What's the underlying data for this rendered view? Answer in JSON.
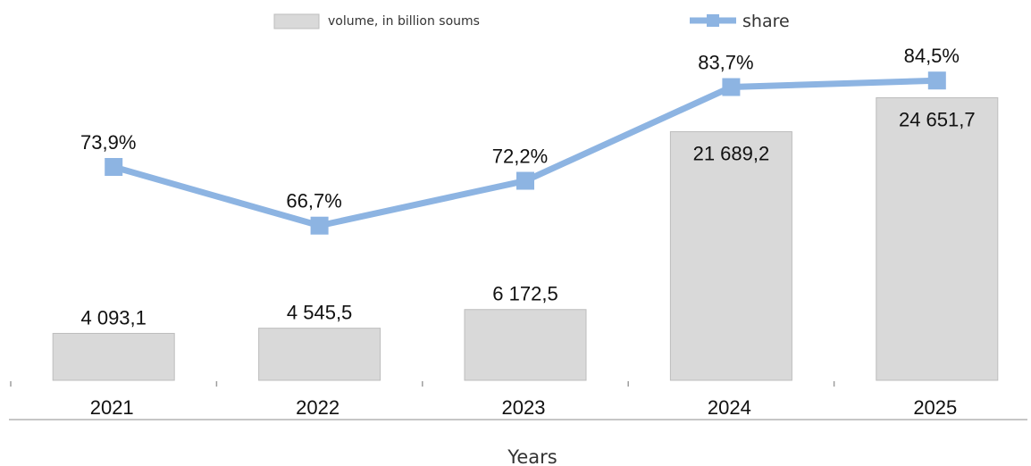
{
  "chart_data": {
    "type": "bar",
    "categories": [
      "2021",
      "2022",
      "2023",
      "2024",
      "2025"
    ],
    "xlabel": "Years",
    "ylabel": "",
    "title": "",
    "series": [
      {
        "name": "volume, in billion soums",
        "type": "bar",
        "values": [
          4093.1,
          4545.5,
          6172.5,
          21689.2,
          24651.7
        ],
        "labels": [
          "4 093,1",
          "4 545,5",
          "6 172,5",
          "21 689,2",
          "24 651,7"
        ],
        "color": "#d9d9d9"
      },
      {
        "name": "share",
        "type": "line",
        "values": [
          73.9,
          66.7,
          72.2,
          83.7,
          84.5
        ],
        "labels": [
          "73,9%",
          "66,7%",
          "72,2%",
          "83,7%",
          "84,5%"
        ],
        "color": "#8db4e2"
      }
    ],
    "legend_position": "top",
    "grid": false
  }
}
